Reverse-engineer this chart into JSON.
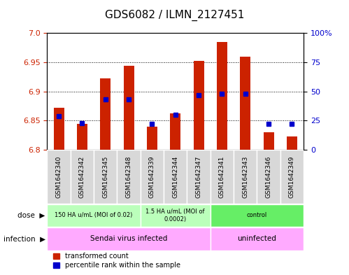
{
  "title": "GDS6082 / ILMN_2127451",
  "samples": [
    "GSM1642340",
    "GSM1642342",
    "GSM1642345",
    "GSM1642348",
    "GSM1642339",
    "GSM1642344",
    "GSM1642347",
    "GSM1642341",
    "GSM1642343",
    "GSM1642346",
    "GSM1642349"
  ],
  "red_values": [
    6.872,
    6.845,
    6.922,
    6.944,
    6.84,
    6.863,
    6.952,
    6.985,
    6.96,
    6.83,
    6.823
  ],
  "blue_values": [
    29,
    23,
    43,
    43,
    22,
    30,
    47,
    48,
    48,
    22,
    22
  ],
  "ylim": [
    6.8,
    7.0
  ],
  "y2lim": [
    0,
    100
  ],
  "yticks": [
    6.8,
    6.85,
    6.9,
    6.95,
    7.0
  ],
  "y2ticks": [
    0,
    25,
    50,
    75,
    100
  ],
  "dose_groups": [
    {
      "label": "150 HA u/mL (MOI of 0.02)",
      "start": 0,
      "end": 3,
      "color": "#bbffbb"
    },
    {
      "label": "1.5 HA u/mL (MOI of\n0.0002)",
      "start": 4,
      "end": 6,
      "color": "#bbffbb"
    },
    {
      "label": "control",
      "start": 7,
      "end": 10,
      "color": "#66ee66"
    }
  ],
  "infection_groups": [
    {
      "label": "Sendai virus infected",
      "start": 0,
      "end": 6,
      "color": "#ffaaff"
    },
    {
      "label": "uninfected",
      "start": 7,
      "end": 10,
      "color": "#ffaaff"
    }
  ],
  "bar_color": "#cc2200",
  "dot_color": "#0000cc",
  "plot_bg": "#ffffff",
  "sample_bg": "#d8d8d8",
  "legend_red": "transformed count",
  "legend_blue": "percentile rank within the sample",
  "bar_width": 0.45
}
